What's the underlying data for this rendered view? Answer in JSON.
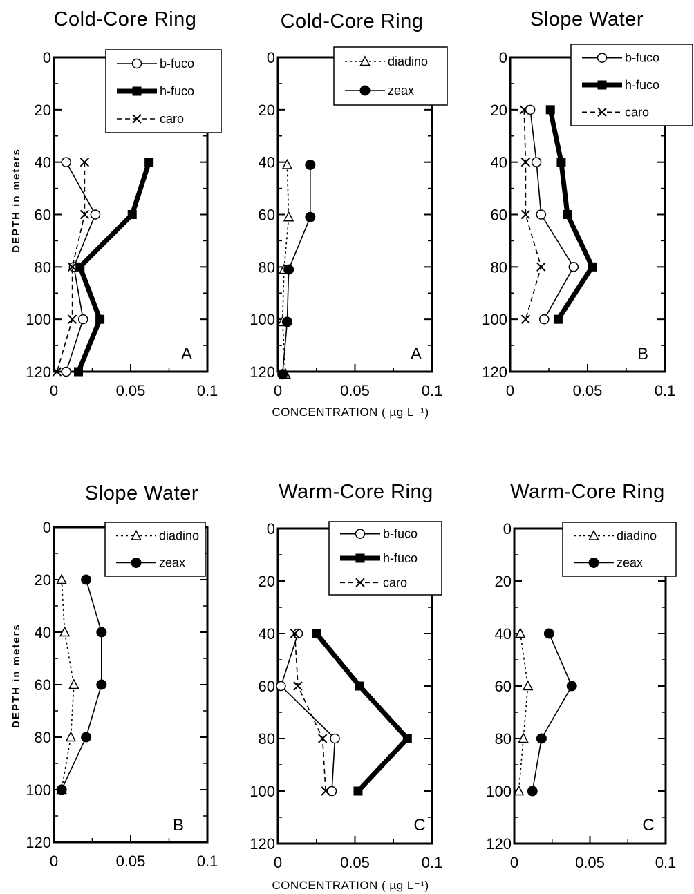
{
  "figure": {
    "y_axis_label": "DEPTH in meters",
    "x_axis_label": "CONCENTRATION ( µg L⁻¹)",
    "colors": {
      "ink": "#000000",
      "background": "#ffffff"
    }
  },
  "chart_data": [
    {
      "type": "line",
      "title": "Cold-Core Ring",
      "panel_letter": "A",
      "xlabel": "",
      "ylabel": "DEPTH in meters",
      "xlim": [
        0,
        0.1
      ],
      "ylim": [
        120,
        0
      ],
      "x_ticks": [
        "0",
        "0.05",
        "0.1"
      ],
      "y_ticks": [
        "0",
        "20",
        "40",
        "60",
        "80",
        "100",
        "120"
      ],
      "legend_position": "top-right",
      "series": [
        {
          "name": "b-fuco",
          "marker": "open-circle",
          "line": "thin",
          "x": [
            0.008,
            0.027,
            0.013,
            0.019,
            0.008
          ],
          "y": [
            40,
            60,
            80,
            100,
            120
          ]
        },
        {
          "name": "h-fuco",
          "marker": "filled-square",
          "line": "thick",
          "x": [
            0.062,
            0.051,
            0.017,
            0.03,
            0.016
          ],
          "y": [
            40,
            60,
            80,
            100,
            120
          ]
        },
        {
          "name": "caro",
          "marker": "x",
          "line": "dashed",
          "x": [
            0.02,
            0.02,
            0.012,
            0.012,
            0.002
          ],
          "y": [
            40,
            60,
            80,
            100,
            120
          ]
        }
      ]
    },
    {
      "type": "line",
      "title": "Cold-Core Ring",
      "panel_letter": "A",
      "xlabel": "CONCENTRATION ( µg L⁻¹)",
      "ylabel": "",
      "xlim": [
        0,
        0.1
      ],
      "ylim": [
        120,
        0
      ],
      "x_ticks": [
        "0",
        "0.05",
        "0.1"
      ],
      "y_ticks": [
        "0",
        "20",
        "40",
        "60",
        "80",
        "100",
        "120"
      ],
      "legend_position": "top-right",
      "series": [
        {
          "name": "diadino",
          "marker": "open-triangle",
          "line": "dotted",
          "x": [
            0.006,
            0.007,
            0.004,
            0.003,
            0.005
          ],
          "y": [
            41,
            61,
            81,
            101,
            121
          ]
        },
        {
          "name": "zeax",
          "marker": "filled-circle",
          "line": "thin",
          "x": [
            0.021,
            0.021,
            0.007,
            0.006,
            0.003
          ],
          "y": [
            41,
            61,
            81,
            101,
            121
          ]
        }
      ]
    },
    {
      "type": "line",
      "title": "Slope Water",
      "panel_letter": "B",
      "xlabel": "",
      "ylabel": "",
      "xlim": [
        0,
        0.1
      ],
      "ylim": [
        120,
        0
      ],
      "x_ticks": [
        "0",
        "0.05",
        "0.1"
      ],
      "y_ticks": [
        "0",
        "20",
        "40",
        "60",
        "80",
        "100",
        "120"
      ],
      "legend_position": "top-right",
      "series": [
        {
          "name": "b-fuco",
          "marker": "open-circle",
          "line": "thin",
          "x": [
            0.013,
            0.017,
            0.02,
            0.041,
            0.022
          ],
          "y": [
            20,
            40,
            60,
            80,
            100
          ]
        },
        {
          "name": "h-fuco",
          "marker": "filled-square",
          "line": "thick",
          "x": [
            0.026,
            0.033,
            0.037,
            0.053,
            0.031
          ],
          "y": [
            20,
            40,
            60,
            80,
            100
          ]
        },
        {
          "name": "caro",
          "marker": "x",
          "line": "dashed",
          "x": [
            0.009,
            0.01,
            0.01,
            0.02,
            0.01
          ],
          "y": [
            20,
            40,
            60,
            80,
            100
          ]
        }
      ]
    },
    {
      "type": "line",
      "title": "Slope Water",
      "panel_letter": "B",
      "xlabel": "",
      "ylabel": "DEPTH in meters",
      "xlim": [
        0,
        0.1
      ],
      "ylim": [
        120,
        0
      ],
      "x_ticks": [
        "0",
        "0.05",
        "0.1"
      ],
      "y_ticks": [
        "0",
        "20",
        "40",
        "60",
        "80",
        "100",
        "120"
      ],
      "legend_position": "top-right",
      "series": [
        {
          "name": "diadino",
          "marker": "open-triangle",
          "line": "dotted",
          "x": [
            0.005,
            0.007,
            0.013,
            0.011,
            0.005
          ],
          "y": [
            20,
            40,
            60,
            80,
            100
          ]
        },
        {
          "name": "zeax",
          "marker": "filled-circle",
          "line": "thin",
          "x": [
            0.021,
            0.031,
            0.031,
            0.021,
            0.005
          ],
          "y": [
            20,
            40,
            60,
            80,
            100
          ]
        }
      ]
    },
    {
      "type": "line",
      "title": "Warm-Core Ring",
      "panel_letter": "C",
      "xlabel": "CONCENTRATION ( µg L⁻¹)",
      "ylabel": "",
      "xlim": [
        0,
        0.1
      ],
      "ylim": [
        120,
        0
      ],
      "x_ticks": [
        "0",
        "0.05",
        "0.1"
      ],
      "y_ticks": [
        "0",
        "20",
        "40",
        "60",
        "80",
        "100",
        "120"
      ],
      "legend_position": "top-right",
      "series": [
        {
          "name": "b-fuco",
          "marker": "open-circle",
          "line": "thin",
          "x": [
            0.013,
            0.002,
            0.037,
            0.035
          ],
          "y": [
            40,
            60,
            80,
            100
          ]
        },
        {
          "name": "h-fuco",
          "marker": "filled-square",
          "line": "thick",
          "x": [
            0.025,
            0.053,
            0.084,
            0.052
          ],
          "y": [
            40,
            60,
            80,
            100
          ]
        },
        {
          "name": "caro",
          "marker": "x",
          "line": "dashed",
          "x": [
            0.011,
            0.013,
            0.029,
            0.031
          ],
          "y": [
            40,
            60,
            80,
            100
          ]
        }
      ]
    },
    {
      "type": "line",
      "title": "Warm-Core Ring",
      "panel_letter": "C",
      "xlabel": "",
      "ylabel": "",
      "xlim": [
        0,
        0.1
      ],
      "ylim": [
        120,
        0
      ],
      "x_ticks": [
        "0",
        "0.05",
        "0.1"
      ],
      "y_ticks": [
        "0",
        "20",
        "40",
        "60",
        "80",
        "100",
        "120"
      ],
      "legend_position": "top-right",
      "series": [
        {
          "name": "diadino",
          "marker": "open-triangle",
          "line": "dotted",
          "x": [
            0.004,
            0.009,
            0.006,
            0.003
          ],
          "y": [
            40,
            60,
            80,
            100
          ]
        },
        {
          "name": "zeax",
          "marker": "filled-circle",
          "line": "thin",
          "x": [
            0.023,
            0.038,
            0.018,
            0.012
          ],
          "y": [
            40,
            60,
            80,
            100
          ]
        }
      ]
    }
  ]
}
